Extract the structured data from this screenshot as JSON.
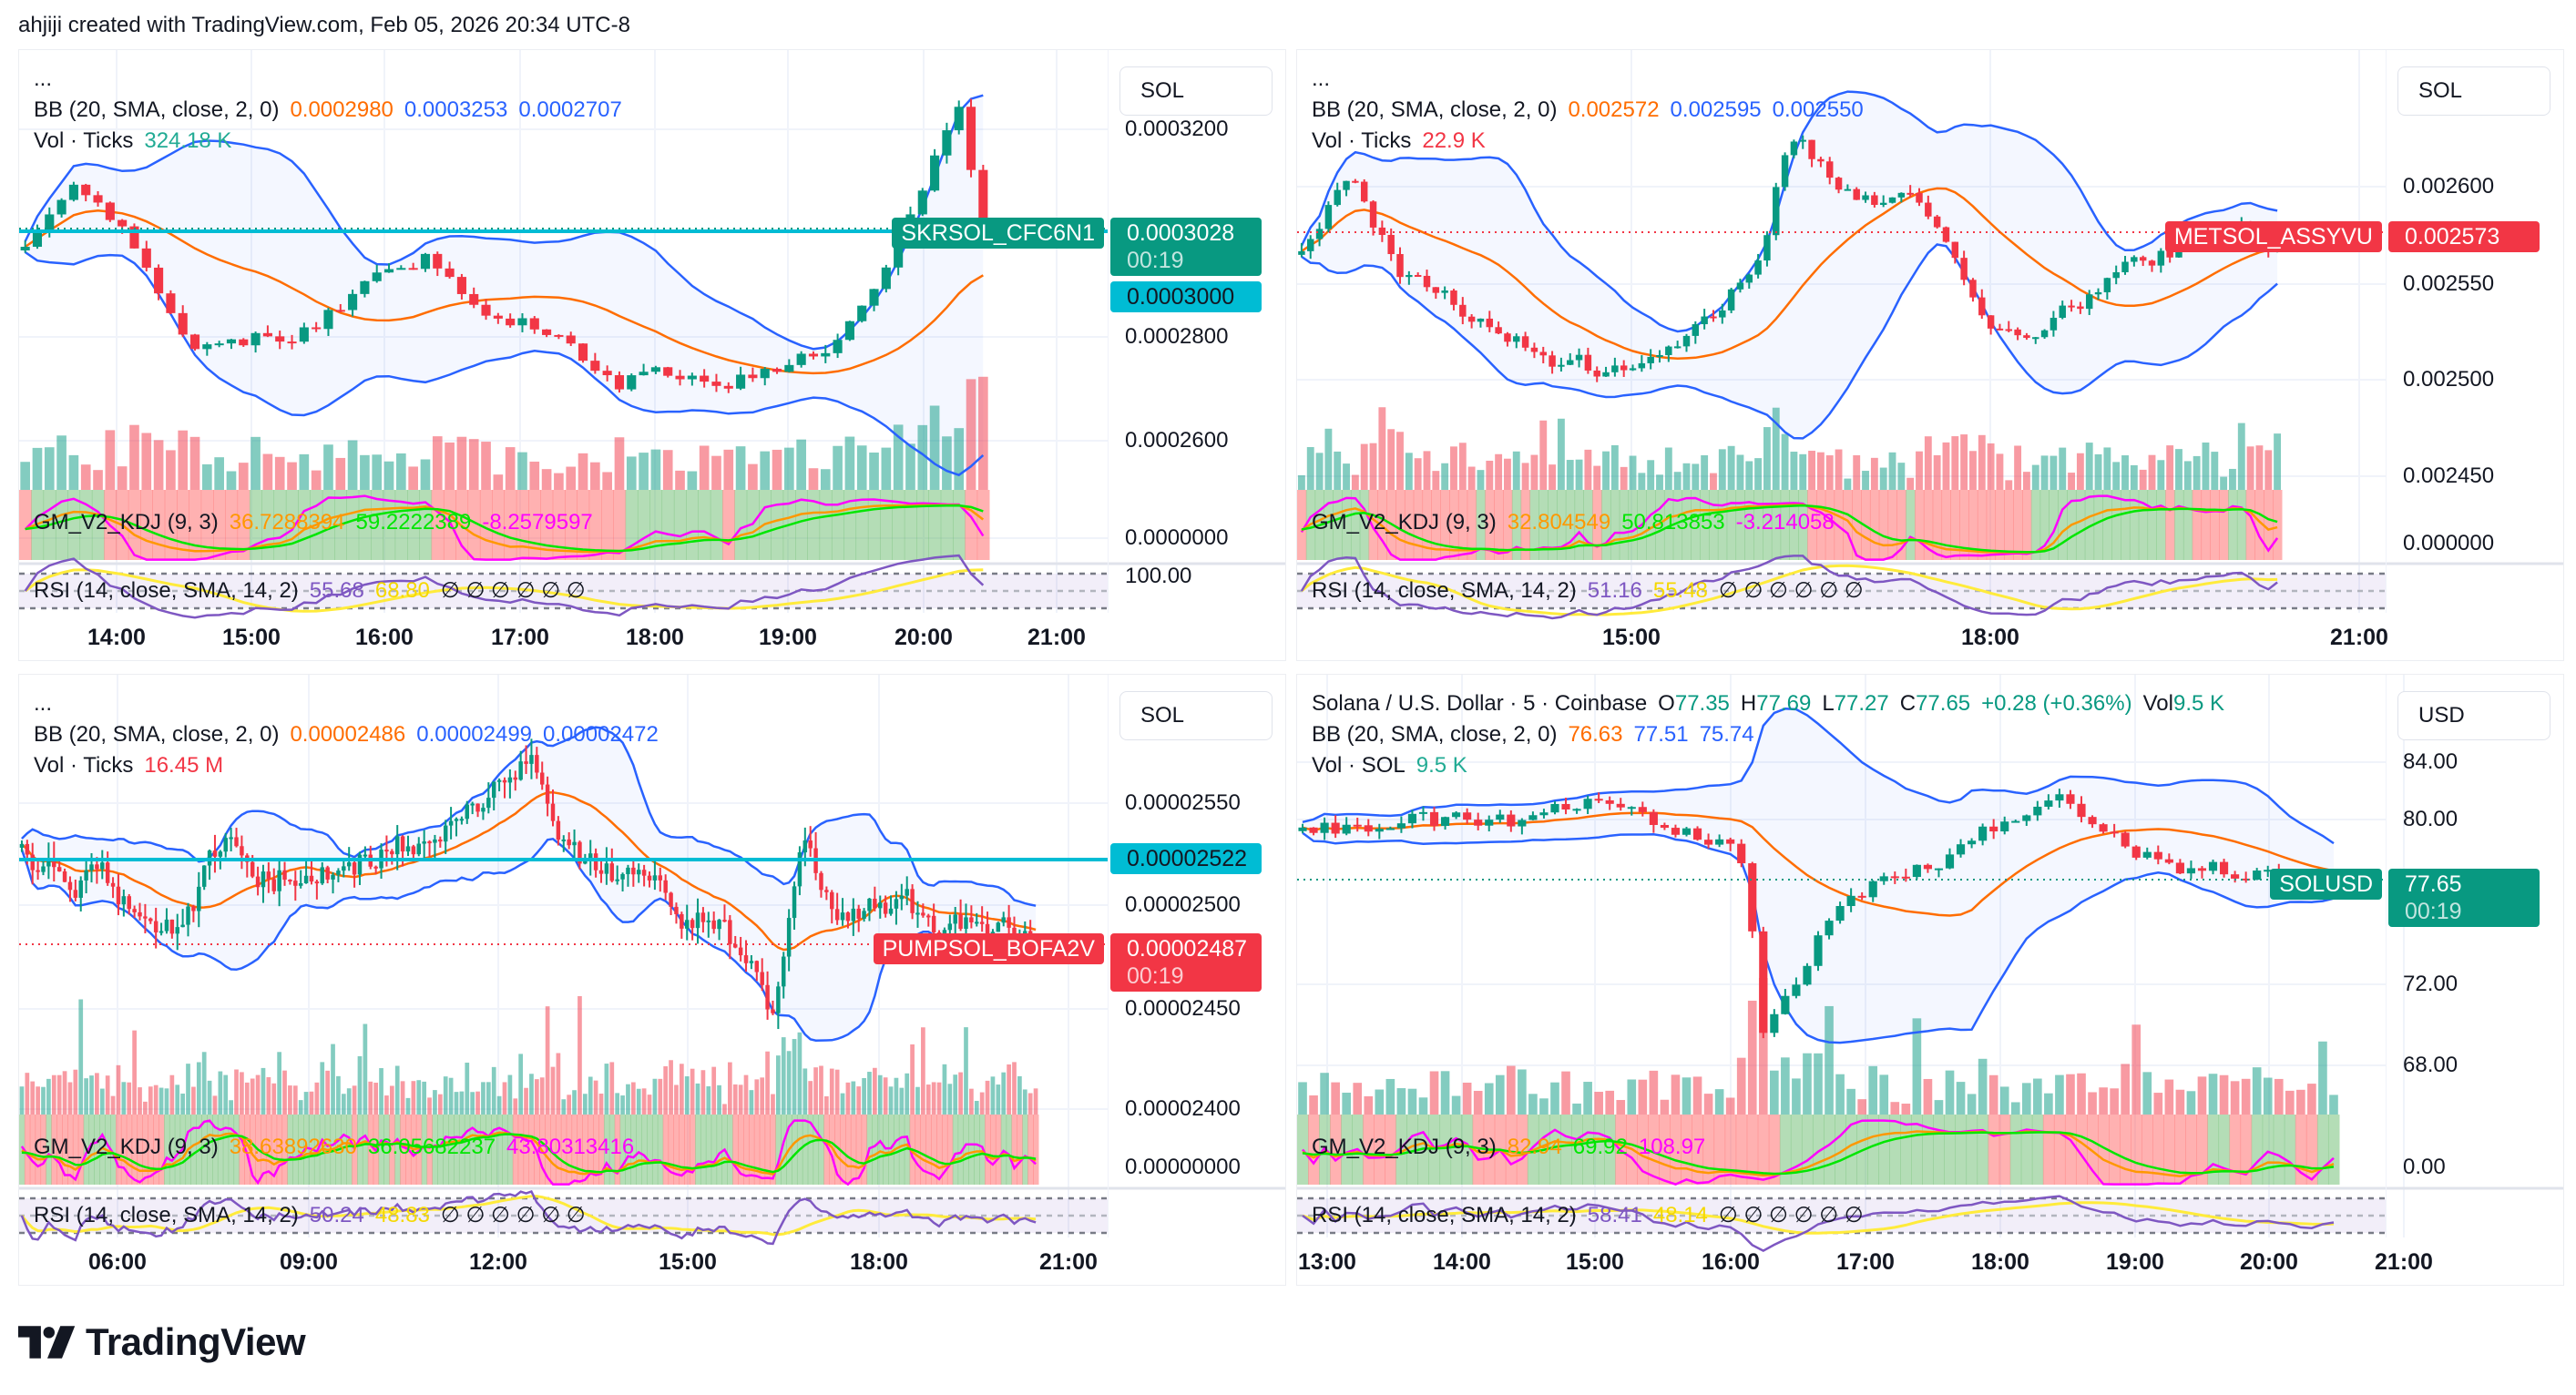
{
  "header": {
    "attribution": "ahjiji created with TradingView.com, Feb 05, 2026 20:34 UTC-8"
  },
  "footer": {
    "logo_text": "TradingView",
    "logo_icon": "tradingview-logo-icon"
  },
  "colors": {
    "up": "#089981",
    "down": "#f23645",
    "bb_basis": "#ff6d00",
    "bb_band": "#2962ff",
    "kdj_k": "#ff9800",
    "kdj_d": "#00e600",
    "kdj_j": "#ff00ff",
    "rsi": "#7e57c2",
    "rsi_ma": "#ffeb3b",
    "alert_line": "#00bcd4"
  },
  "panels": [
    {
      "more": "...",
      "bb": {
        "label": "BB (20, SMA, close, 2, 0)",
        "basis": "0.0002980",
        "upper": "0.0003253",
        "lower": "0.0002707"
      },
      "vol": {
        "label": "Vol · Ticks",
        "value": "324.18 K",
        "direction": "up"
      },
      "kdj": {
        "label": "GM_V2_KDJ (9, 3)",
        "k": "36.7288394",
        "d": "59.2222389",
        "j": "-8.2579597"
      },
      "rsi": {
        "label": "RSI (14, close, SMA, 14, 2)",
        "rsi": "55.68",
        "ma": "68.80",
        "na": "∅ ∅ ∅ ∅ ∅ ∅"
      },
      "currency": "SOL",
      "price_ticks": [
        "0.0003200",
        "0.0002800",
        "0.0002600",
        "0.0000000",
        "100.00"
      ],
      "time_ticks": [
        "14:00",
        "15:00",
        "16:00",
        "17:00",
        "18:00",
        "19:00",
        "20:00",
        "21:00"
      ],
      "last_price": {
        "symbol": "SKRSOL_CFC6N1",
        "price": "0.0003028",
        "countdown": "00:19",
        "direction": "up"
      },
      "alert_line": {
        "price": "0.0003000"
      }
    },
    {
      "more": "...",
      "bb": {
        "label": "BB (20, SMA, close, 2, 0)",
        "basis": "0.002572",
        "upper": "0.002595",
        "lower": "0.002550"
      },
      "vol": {
        "label": "Vol · Ticks",
        "value": "22.9 K",
        "direction": "down"
      },
      "kdj": {
        "label": "GM_V2_KDJ (9, 3)",
        "k": "32.804549",
        "d": "50.813853",
        "j": "-3.214058"
      },
      "rsi": {
        "label": "RSI (14, close, SMA, 14, 2)",
        "rsi": "51.16",
        "ma": "55.48",
        "na": "∅ ∅ ∅ ∅ ∅ ∅"
      },
      "currency": "SOL",
      "price_ticks": [
        "0.002600",
        "0.002550",
        "0.002500",
        "0.002450",
        "0.000000"
      ],
      "time_ticks": [
        "15:00",
        "18:00",
        "21:00"
      ],
      "last_price": {
        "symbol": "METSOL_ASSYVU",
        "price": "0.002573",
        "countdown": "",
        "direction": "down"
      }
    },
    {
      "more": "...",
      "bb": {
        "label": "BB (20, SMA, close, 2, 0)",
        "basis": "0.00002486",
        "upper": "0.00002499",
        "lower": "0.00002472"
      },
      "vol": {
        "label": "Vol · Ticks",
        "value": "16.45 M",
        "direction": "down"
      },
      "kdj": {
        "label": "GM_V2_KDJ (9, 3)",
        "k": "38.63892630",
        "d": "36.05682237",
        "j": "43.80313416"
      },
      "rsi": {
        "label": "RSI (14, close, SMA, 14, 2)",
        "rsi": "50.24",
        "ma": "48.83",
        "na": "∅ ∅ ∅ ∅ ∅ ∅"
      },
      "currency": "SOL",
      "price_ticks": [
        "0.00002550",
        "0.00002500",
        "0.00002450",
        "0.00002400",
        "0.00000000"
      ],
      "time_ticks": [
        "06:00",
        "09:00",
        "12:00",
        "15:00",
        "18:00",
        "21:00"
      ],
      "last_price": {
        "symbol": "PUMPSOL_BOFA2V",
        "price": "0.00002487",
        "countdown": "00:19",
        "direction": "down"
      },
      "alert_line": {
        "price": "0.00002522"
      }
    },
    {
      "symbol": {
        "name": "Solana / U.S. Dollar · 5 · Coinbase",
        "o_label": "O",
        "o": "77.35",
        "h_label": "H",
        "h": "77.69",
        "l_label": "L",
        "l": "77.27",
        "c_label": "C",
        "c": "77.65",
        "change": "+0.28 (+0.36%)",
        "vol_label": "Vol",
        "vol": "9.5 K"
      },
      "bb": {
        "label": "BB (20, SMA, close, 2, 0)",
        "basis": "76.63",
        "upper": "77.51",
        "lower": "75.74"
      },
      "vol": {
        "label": "Vol · SOL",
        "value": "9.5 K",
        "direction": "up"
      },
      "kdj": {
        "label": "GM_V2_KDJ (9, 3)",
        "k": "82.94",
        "d": "69.92",
        "j": "108.97"
      },
      "rsi": {
        "label": "RSI (14, close, SMA, 14, 2)",
        "rsi": "58.41",
        "ma": "48.14",
        "na": "∅ ∅ ∅ ∅ ∅ ∅"
      },
      "currency": "USD",
      "price_ticks": [
        "84.00",
        "80.00",
        "72.00",
        "68.00",
        "0.00"
      ],
      "time_ticks": [
        "13:00",
        "14:00",
        "15:00",
        "16:00",
        "17:00",
        "18:00",
        "19:00",
        "20:00",
        "21:00"
      ],
      "last_price": {
        "symbol": "SOLUSD",
        "price": "77.65",
        "countdown": "00:19",
        "direction": "up"
      }
    }
  ]
}
